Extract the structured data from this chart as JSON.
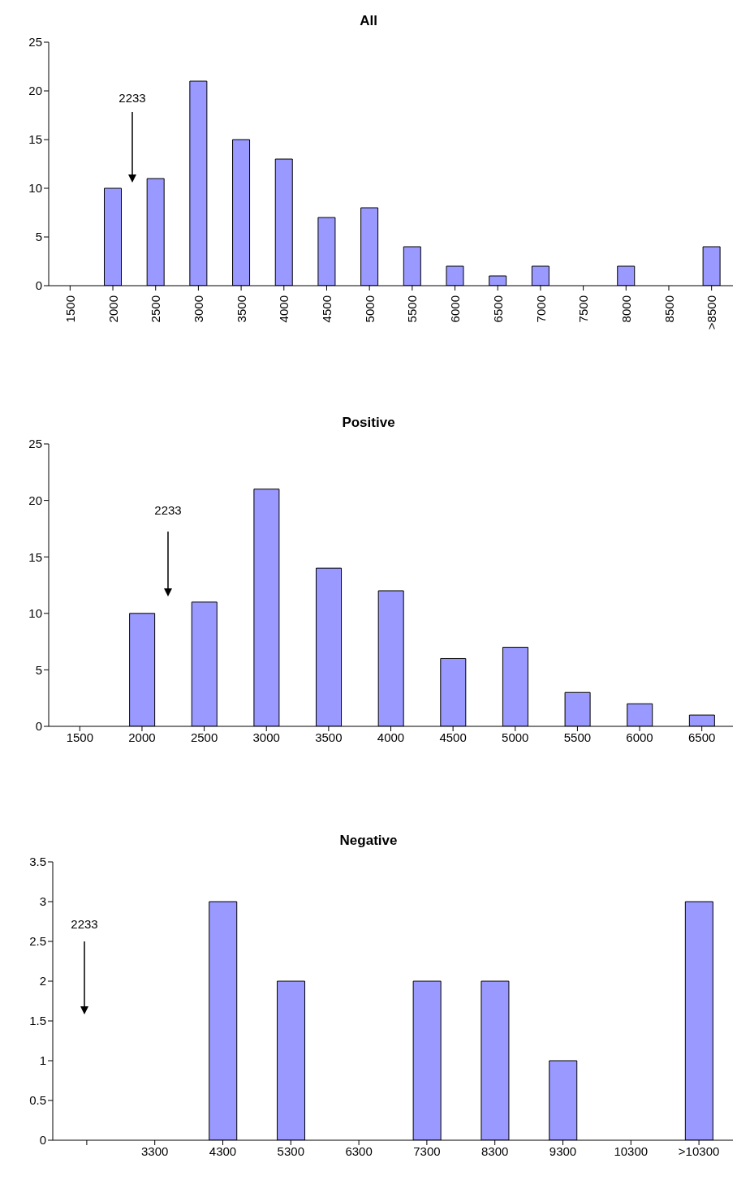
{
  "chart_data": [
    {
      "type": "bar",
      "title": "All",
      "categories": [
        "1500",
        "2000",
        "2500",
        "3000",
        "3500",
        "4000",
        "4500",
        "5000",
        "5500",
        "6000",
        "6500",
        "7000",
        "7500",
        "8000",
        "8500",
        ">8500"
      ],
      "values": [
        0,
        10,
        11,
        21,
        15,
        13,
        7,
        8,
        4,
        2,
        1,
        2,
        0,
        2,
        0,
        4
      ],
      "color": "#9999ff",
      "ylim": [
        0,
        25
      ],
      "yticks": [
        0,
        5,
        10,
        15,
        20,
        25
      ],
      "grid": false,
      "annotations": [
        "2233"
      ]
    },
    {
      "type": "bar",
      "title": "Positive",
      "categories": [
        "1500",
        "2000",
        "2500",
        "3000",
        "3500",
        "4000",
        "4500",
        "5000",
        "5500",
        "6000",
        "6500"
      ],
      "values": [
        0,
        10,
        11,
        21,
        14,
        12,
        6,
        7,
        3,
        2,
        1
      ],
      "color": "#9999ff",
      "ylim": [
        0,
        25
      ],
      "yticks": [
        0,
        5,
        10,
        15,
        20,
        25
      ],
      "grid": false,
      "annotations": [
        "2233"
      ]
    },
    {
      "type": "bar",
      "title": "Negative",
      "categories": [
        null,
        "3300",
        "4300",
        "5300",
        "6300",
        "7300",
        "8300",
        "9300",
        "10300",
        ">10300"
      ],
      "values": [
        0,
        0,
        3,
        2,
        0,
        2,
        2,
        1,
        0,
        3
      ],
      "color": "#9999ff",
      "ylim": [
        0,
        3.5
      ],
      "yticks": [
        0,
        0.5,
        1,
        1.5,
        2,
        2.5,
        3,
        3.5
      ],
      "grid": false,
      "annotations": [
        "2233"
      ]
    }
  ]
}
